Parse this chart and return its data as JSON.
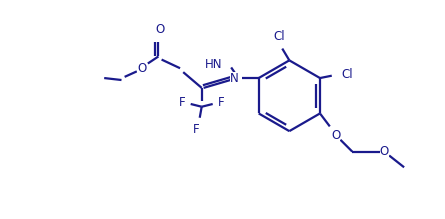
{
  "bg_color": "#ffffff",
  "line_color": "#1a1a8c",
  "text_color": "#1a1a8c",
  "line_width": 1.6,
  "font_size": 8.5,
  "figsize": [
    4.45,
    2.19
  ],
  "dpi": 100,
  "xlim": [
    0,
    11
  ],
  "ylim": [
    0,
    5.5
  ]
}
